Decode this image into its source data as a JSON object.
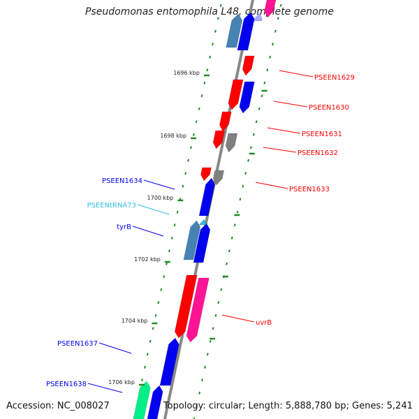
{
  "title": "Pseudomonas entomophila L48, complete genome",
  "footer": {
    "accession": "Accession: NC_008027",
    "summary": "Topology: circular; Length: 5,888,780 bp; Genes: 5,241"
  },
  "scale": {
    "ticks": [
      "1696 kbp",
      "1698 kbp",
      "1700 kbp",
      "1702 kbp",
      "1704 kbp",
      "1706 kbp"
    ]
  },
  "colors": {
    "red": "#ff0000",
    "blue": "#0000ee",
    "steelblue": "#4682b4",
    "gray": "#808080",
    "pink": "#ff1493",
    "teal": "#00ee88",
    "trna": "#33bbdd",
    "lavender": "#aaaaff",
    "backbone": "#888888",
    "dots": "#228b22"
  },
  "genes": {
    "forward": [
      {
        "label": "PSEEN1629",
        "color": "red"
      },
      {
        "label": "PSEEN1630",
        "color": "red"
      },
      {
        "label": "PSEEN1631",
        "color": "red"
      },
      {
        "label": "PSEEN1632",
        "color": "red"
      },
      {
        "label": "PSEEN1633",
        "color": "red"
      },
      {
        "label": "uvrB",
        "color": "red"
      }
    ],
    "reverse": [
      {
        "label": "PSEEN1634",
        "color": "blue"
      },
      {
        "label": "PSEENtRNA73",
        "color": "trna"
      },
      {
        "label": "tyrB",
        "color": "blue"
      },
      {
        "label": "PSEEN1637",
        "color": "blue"
      },
      {
        "label": "PSEEN1638",
        "color": "blue"
      }
    ]
  }
}
